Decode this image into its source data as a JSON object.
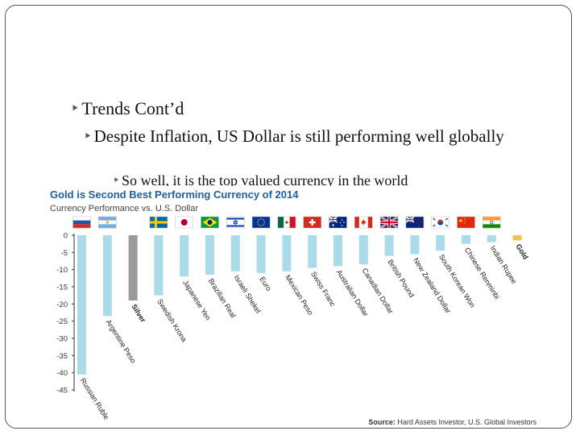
{
  "slide": {
    "bullet1": "Trends Cont’d",
    "bullet2": "Despite Inflation, US Dollar is still performing well globally",
    "bullet3": "So well, it is the top valued currency in the world"
  },
  "colors": {
    "bar": "#a9dbe8",
    "silver": "#9a9a9a",
    "gold": "#f2c14e",
    "title": "#1f5fa6",
    "axis": "#333333"
  },
  "chart_data": {
    "type": "bar",
    "title": "Gold is Second Best Performing Currency of 2014",
    "subtitle": "Currency Performance vs. U.S. Dollar",
    "source_label": "Source:",
    "source_text": "Hard Assets Investor, U.S. Global Investors",
    "ylim": [
      -45,
      0
    ],
    "yticks": [
      0,
      -5,
      -10,
      -15,
      -20,
      -25,
      -30,
      -35,
      -40,
      -45
    ],
    "categories": [
      "Russian Ruble",
      "Argentine Peso",
      "Silver",
      "Swedish Krona",
      "Japanese Yen",
      "Brazilian Real",
      "Israeli Shekel",
      "Euro",
      "Mexican Peso",
      "Swiss Franc",
      "Australian Dollar",
      "Canadian Dollar",
      "British Pound",
      "New Zealand Dollar",
      "South Korean Won",
      "Chinese Renminbi",
      "Indian Rupee",
      "Gold"
    ],
    "values": [
      -40.5,
      -23.5,
      -19.0,
      -17.5,
      -12.0,
      -11.5,
      -10.5,
      -11.0,
      -10.5,
      -9.5,
      -9.0,
      -8.5,
      -6.0,
      -5.5,
      -4.5,
      -2.5,
      -2.0,
      -1.5
    ],
    "flags": [
      "russia-flag",
      "argentina-flag",
      "",
      "sweden-flag",
      "japan-flag",
      "brazil-flag",
      "israel-flag",
      "eu-flag",
      "mexico-flag",
      "switzerland-flag",
      "australia-flag",
      "canada-flag",
      "uk-flag",
      "new-zealand-flag",
      "south-korea-flag",
      "china-flag",
      "india-flag",
      ""
    ]
  }
}
